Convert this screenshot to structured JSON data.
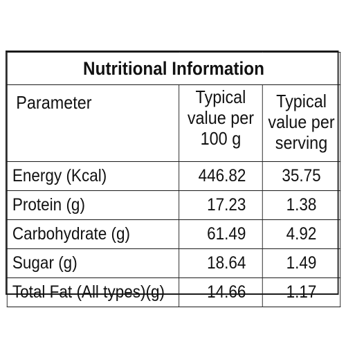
{
  "title": "Nutritional Information",
  "headers": {
    "parameter": "Parameter",
    "per_100g": [
      "Typical",
      "value per",
      "100 g"
    ],
    "per_serving": [
      "Typical",
      "value per",
      "serving"
    ]
  },
  "rows": [
    {
      "parameter": "Energy (Kcal)",
      "per_100g": "446.82",
      "per_serving": "35.75"
    },
    {
      "parameter": "Protein (g)",
      "per_100g": "17.23",
      "per_serving": "1.38"
    },
    {
      "parameter": "Carbohydrate (g)",
      "per_100g": "61.49",
      "per_serving": "4.92"
    },
    {
      "parameter": "Sugar (g)",
      "per_100g": "18.64",
      "per_serving": "1.49"
    },
    {
      "parameter": "Total Fat (All types)(g)",
      "per_100g": "14.66",
      "per_serving": "1.17"
    }
  ]
}
